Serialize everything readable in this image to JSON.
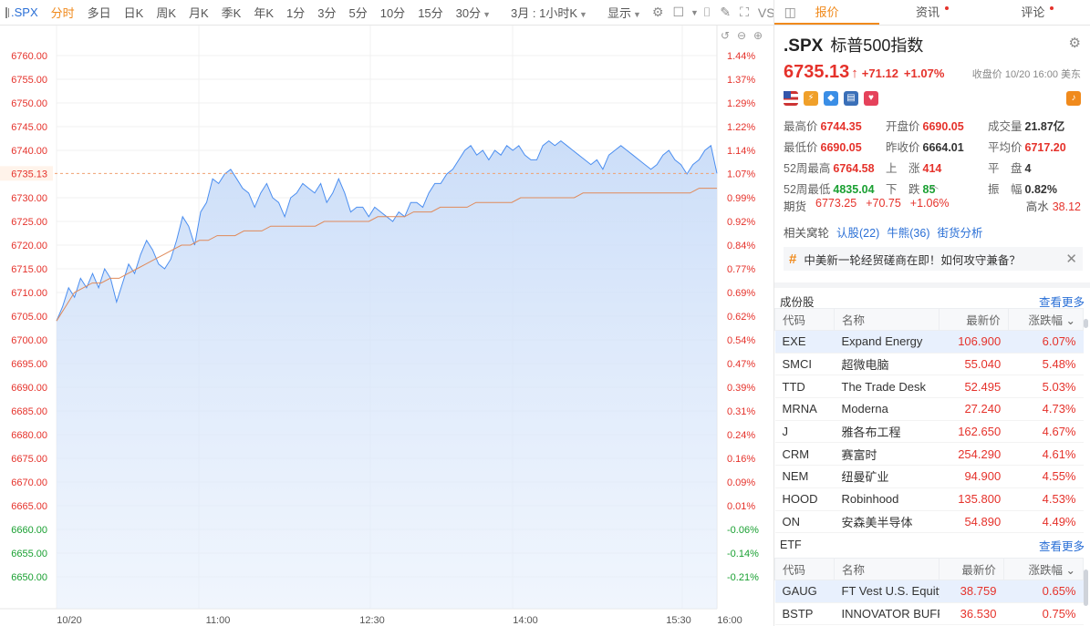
{
  "toolbar": {
    "symbol": ".SPX",
    "periods": [
      "分时",
      "多日",
      "日K",
      "周K",
      "月K",
      "季K",
      "年K",
      "1分",
      "3分",
      "5分",
      "10分",
      "15分",
      "30分"
    ],
    "active_period": "分时",
    "range_select": "3月 : 1小时K",
    "display_label": "显示",
    "vs_label": "VS"
  },
  "chart_data": {
    "type": "line",
    "x_ticks": [
      "10/20",
      "11:00",
      "12:30",
      "14:00",
      "15:30",
      "16:00"
    ],
    "y_ticks_left": [
      "6760.00",
      "6755.00",
      "6750.00",
      "6745.00",
      "6740.00",
      "6735.13",
      "6730.00",
      "6725.00",
      "6720.00",
      "6715.00",
      "6710.00",
      "6705.00",
      "6700.00",
      "6695.00",
      "6690.00",
      "6685.00",
      "6680.00",
      "6675.00",
      "6670.00",
      "6665.00",
      "6660.00",
      "6655.00",
      "6650.00"
    ],
    "y_ticks_right": [
      "1.44%",
      "1.37%",
      "1.29%",
      "1.22%",
      "1.14%",
      "1.07%",
      "0.99%",
      "0.92%",
      "0.84%",
      "0.77%",
      "0.69%",
      "0.62%",
      "0.54%",
      "0.47%",
      "0.39%",
      "0.31%",
      "0.24%",
      "0.16%",
      "0.09%",
      "0.01%",
      "-0.06%",
      "-0.14%",
      "-0.21%"
    ],
    "ylim": [
      6650,
      6760
    ],
    "prev_close": 6664.01,
    "last_price": 6735.13,
    "series": [
      {
        "values": [
          6704,
          6707,
          6711,
          6709,
          6713,
          6711,
          6714,
          6711,
          6715,
          6713,
          6708,
          6712,
          6716,
          6714,
          6718,
          6721,
          6719,
          6716,
          6715,
          6717,
          6721,
          6726,
          6724,
          6720,
          6727,
          6729,
          6734,
          6733,
          6735,
          6736,
          6734,
          6732,
          6731,
          6728,
          6731,
          6733,
          6730,
          6729,
          6726,
          6730,
          6731,
          6733,
          6732,
          6731,
          6733,
          6729,
          6731,
          6734,
          6731,
          6727,
          6728,
          6728,
          6726,
          6728,
          6727,
          6726,
          6725,
          6727,
          6726,
          6729,
          6729,
          6728,
          6731,
          6733,
          6733,
          6735,
          6736,
          6738,
          6740,
          6741,
          6739,
          6740,
          6738,
          6740,
          6739,
          6741,
          6740,
          6741,
          6739,
          6738,
          6738,
          6741,
          6742,
          6741,
          6742,
          6741,
          6740,
          6739,
          6738,
          6737,
          6738,
          6736,
          6739,
          6740,
          6741,
          6740,
          6739,
          6738,
          6737,
          6736,
          6737,
          6739,
          6740,
          6738,
          6737,
          6735,
          6737,
          6738,
          6740,
          6741,
          6735.13
        ]
      },
      {
        "values": [
          6704,
          6707,
          6710,
          6711,
          6712,
          6712,
          6713,
          6713,
          6714,
          6715,
          6716,
          6717,
          6718,
          6719,
          6720,
          6720,
          6721,
          6721,
          6722,
          6722,
          6722,
          6723,
          6723,
          6723,
          6724,
          6724,
          6724,
          6724,
          6724,
          6724,
          6725,
          6725,
          6725,
          6725,
          6725,
          6725,
          6726,
          6726,
          6726,
          6726,
          6727,
          6727,
          6727,
          6728,
          6728,
          6728,
          6728,
          6729,
          6729,
          6729,
          6729,
          6729,
          6730,
          6730,
          6730,
          6730,
          6730,
          6730,
          6730,
          6731,
          6731,
          6731,
          6731,
          6731,
          6731,
          6731,
          6731,
          6731,
          6731,
          6731,
          6731,
          6731,
          6732,
          6732,
          6732
        ]
      }
    ]
  },
  "tabs": [
    {
      "label": "报价",
      "dot": false
    },
    {
      "label": "资讯",
      "dot": true
    },
    {
      "label": "评论",
      "dot": true
    }
  ],
  "quote": {
    "symbol": ".SPX",
    "name": "标普500指数",
    "price": "6735.13",
    "change": "+71.12",
    "change_pct": "+1.07%",
    "close_note": "收盘价 10/20 16:00 美东"
  },
  "stats": [
    {
      "label": "最高价",
      "value": "6744.35",
      "color": "red"
    },
    {
      "label": "开盘价",
      "value": "6690.05",
      "color": "red"
    },
    {
      "label": "成交量",
      "value": "21.87亿",
      "color": "dark"
    },
    {
      "label": "最低价",
      "value": "6690.05",
      "color": "red"
    },
    {
      "label": "昨收价",
      "value": "6664.01",
      "color": "dark"
    },
    {
      "label": "平均价",
      "value": "6717.20",
      "color": "red"
    },
    {
      "label": "52周最高",
      "value": "6764.58",
      "color": "red"
    },
    {
      "label": "上　涨",
      "value": "414",
      "color": "red"
    },
    {
      "label": "平　盘",
      "value": "4",
      "color": "dark"
    },
    {
      "label": "52周最低",
      "value": "4835.04",
      "color": "green"
    },
    {
      "label": "下　跌",
      "value": "85",
      "color": "green"
    },
    {
      "label": "振　幅",
      "value": "0.82%",
      "color": "dark"
    }
  ],
  "futures": {
    "label": "期货",
    "price": "6773.25",
    "change": "+70.75",
    "change_pct": "+1.06%",
    "water_label": "高水",
    "water_value": "38.12"
  },
  "related": {
    "label": "相关窝轮",
    "links": [
      "认股(22)",
      "牛熊(36)",
      "街货分析"
    ]
  },
  "news": {
    "text": "中美新一轮经贸磋商在即！如何攻守兼备？"
  },
  "constituents": {
    "title": "成份股",
    "more": "查看更多",
    "headers": [
      "代码",
      "名称",
      "最新价",
      "涨跌幅"
    ],
    "rows": [
      {
        "code": "EXE",
        "name": "Expand Energy",
        "price": "106.900",
        "pct": "6.07%"
      },
      {
        "code": "SMCI",
        "name": "超微电脑",
        "price": "55.040",
        "pct": "5.48%"
      },
      {
        "code": "TTD",
        "name": "The Trade Desk",
        "price": "52.495",
        "pct": "5.03%"
      },
      {
        "code": "MRNA",
        "name": "Moderna",
        "price": "27.240",
        "pct": "4.73%"
      },
      {
        "code": "J",
        "name": "雅各布工程",
        "price": "162.650",
        "pct": "4.67%"
      },
      {
        "code": "CRM",
        "name": "赛富时",
        "price": "254.290",
        "pct": "4.61%"
      },
      {
        "code": "NEM",
        "name": "纽曼矿业",
        "price": "94.900",
        "pct": "4.55%"
      },
      {
        "code": "HOOD",
        "name": "Robinhood",
        "price": "135.800",
        "pct": "4.53%"
      },
      {
        "code": "ON",
        "name": "安森美半导体",
        "price": "54.890",
        "pct": "4.49%"
      }
    ]
  },
  "etf": {
    "title": "ETF",
    "more": "查看更多",
    "headers": [
      "代码",
      "名称",
      "最新价",
      "涨跌幅"
    ],
    "rows": [
      {
        "code": "GAUG",
        "name": "FT Vest U.S. Equity",
        "price": "38.759",
        "pct": "0.65%"
      },
      {
        "code": "BSTP",
        "name": "INNOVATOR BUFFER",
        "price": "36.530",
        "pct": "0.75%"
      }
    ]
  }
}
